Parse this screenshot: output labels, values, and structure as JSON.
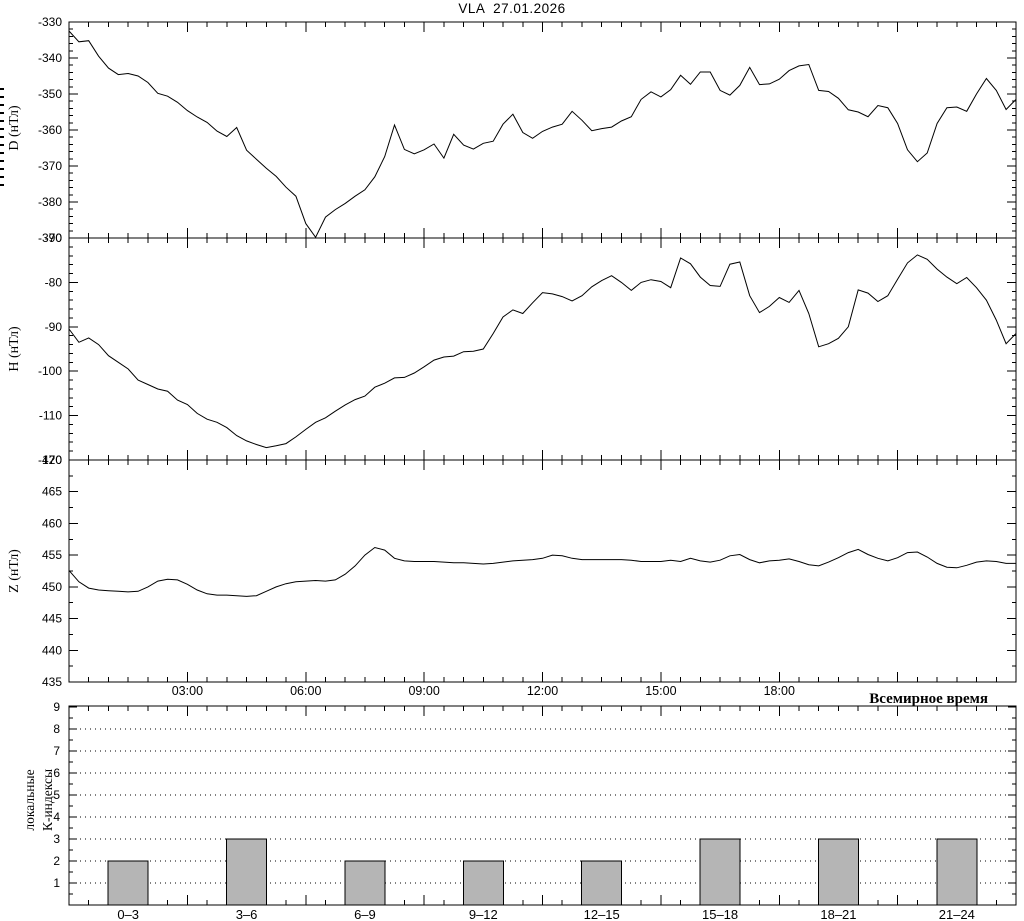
{
  "title": "VLA  27.01.2026",
  "colors": {
    "ink": "#000000",
    "background": "#ffffff",
    "bar_fill": "#b5b5b5"
  },
  "x_axis": {
    "range_hours": [
      0,
      24
    ],
    "minor_tick_step_hours": 0.5,
    "major_tick_step_hours": 3,
    "tick_hours": [
      3,
      6,
      9,
      12,
      15,
      18
    ],
    "tick_labels": [
      "03:00",
      "06:00",
      "09:00",
      "12:00",
      "15:00",
      "18:00"
    ],
    "note": "Всемирное время"
  },
  "chart_data": [
    {
      "type": "line",
      "name": "d",
      "ylabel": "D (нТл)",
      "ylim": [
        -390,
        -330
      ],
      "ytick_major_step": 10,
      "ytick_minor_step": 2,
      "x_start_hour": 0,
      "x_step_hour": 0.25,
      "values": [
        -332.5,
        -335.5,
        -335.2,
        -339.5,
        -342.8,
        -344.6,
        -344.3,
        -345.0,
        -346.8,
        -349.8,
        -350.6,
        -352.3,
        -354.6,
        -356.4,
        -357.9,
        -360.3,
        -361.8,
        -359.3,
        -365.6,
        -368.1,
        -370.6,
        -372.9,
        -375.9,
        -378.4,
        -386.0,
        -389.8,
        -384.2,
        -382.1,
        -380.4,
        -378.4,
        -376.6,
        -373.0,
        -367.4,
        -358.6,
        -365.4,
        -366.6,
        -365.5,
        -363.9,
        -367.8,
        -361.2,
        -364.2,
        -365.3,
        -363.7,
        -363.1,
        -358.4,
        -355.6,
        -360.7,
        -362.3,
        -360.4,
        -359.2,
        -358.4,
        -354.8,
        -357.3,
        -360.2,
        -359.6,
        -359.2,
        -357.5,
        -356.3,
        -351.5,
        -349.4,
        -350.8,
        -348.8,
        -344.8,
        -347.3,
        -343.9,
        -343.9,
        -349.0,
        -350.3,
        -347.6,
        -342.6,
        -347.4,
        -347.2,
        -345.9,
        -343.5,
        -342.2,
        -341.8,
        -349.0,
        -349.3,
        -351.2,
        -354.4,
        -355.0,
        -356.3,
        -353.2,
        -353.8,
        -358.2,
        -365.5,
        -368.8,
        -366.4,
        -358.2,
        -353.8,
        -353.6,
        -354.8,
        -350.0,
        -345.7,
        -349.0,
        -354.3,
        -351.5
      ]
    },
    {
      "type": "line",
      "name": "h",
      "ylabel": "H (нТл)",
      "ylim": [
        -120,
        -70
      ],
      "ytick_major_step": 10,
      "ytick_minor_step": 2,
      "x_start_hour": 0,
      "x_step_hour": 0.25,
      "values": [
        -90.5,
        -93.5,
        -92.5,
        -94.0,
        -96.5,
        -98.0,
        -99.5,
        -102.0,
        -103.0,
        -104.0,
        -104.5,
        -106.5,
        -107.5,
        -109.5,
        -110.8,
        -111.5,
        -112.7,
        -114.5,
        -115.7,
        -116.5,
        -117.2,
        -116.8,
        -116.3,
        -114.8,
        -113.1,
        -111.5,
        -110.5,
        -109.0,
        -107.6,
        -106.4,
        -105.6,
        -103.6,
        -102.7,
        -101.5,
        -101.4,
        -100.4,
        -99.0,
        -97.5,
        -96.8,
        -96.6,
        -95.6,
        -95.5,
        -95.0,
        -91.5,
        -87.8,
        -86.2,
        -87.0,
        -84.6,
        -82.3,
        -82.6,
        -83.2,
        -84.2,
        -83.0,
        -81.0,
        -79.6,
        -78.5,
        -80.0,
        -81.8,
        -80.0,
        -79.4,
        -79.8,
        -81.2,
        -74.5,
        -75.8,
        -78.8,
        -80.7,
        -80.9,
        -75.9,
        -75.4,
        -83.0,
        -86.8,
        -85.4,
        -83.4,
        -84.5,
        -81.8,
        -87.0,
        -94.5,
        -93.8,
        -92.6,
        -90.0,
        -81.7,
        -82.4,
        -84.3,
        -83.0,
        -79.3,
        -75.6,
        -73.8,
        -74.8,
        -77.0,
        -78.8,
        -80.3,
        -78.9,
        -81.2,
        -84.0,
        -88.5,
        -93.8,
        -91.5
      ]
    },
    {
      "type": "line",
      "name": "z",
      "ylabel": "Z (нТл)",
      "ylim": [
        435,
        470
      ],
      "ytick_major_step": 5,
      "ytick_minor_step": 2.5,
      "x_start_hour": 0,
      "x_step_hour": 0.25,
      "values": [
        452.6,
        450.8,
        449.8,
        449.5,
        449.4,
        449.3,
        449.2,
        449.3,
        450.0,
        450.9,
        451.2,
        451.1,
        450.4,
        449.5,
        448.9,
        448.7,
        448.7,
        448.6,
        448.5,
        448.6,
        449.3,
        450.0,
        450.5,
        450.8,
        450.9,
        451.0,
        450.9,
        451.1,
        452.0,
        453.3,
        455.0,
        456.2,
        455.8,
        454.5,
        454.1,
        454.0,
        454.0,
        454.0,
        453.9,
        453.8,
        453.8,
        453.7,
        453.6,
        453.7,
        453.9,
        454.1,
        454.2,
        454.3,
        454.5,
        455.0,
        454.9,
        454.5,
        454.3,
        454.3,
        454.3,
        454.3,
        454.3,
        454.2,
        454.0,
        454.0,
        454.0,
        454.2,
        454.0,
        454.5,
        454.1,
        453.9,
        454.2,
        454.9,
        455.1,
        454.3,
        453.8,
        454.1,
        454.2,
        454.4,
        454.0,
        453.5,
        453.3,
        453.9,
        454.6,
        455.4,
        455.9,
        455.1,
        454.5,
        454.1,
        454.6,
        455.4,
        455.5,
        454.7,
        453.7,
        453.1,
        453.0,
        453.4,
        453.9,
        454.1,
        454.0,
        453.7,
        453.7
      ]
    },
    {
      "type": "bar",
      "name": "k-index",
      "ylabel_line1": "локальные",
      "ylabel_line2": "К-индексы",
      "ylim": [
        0,
        9
      ],
      "yticks": [
        1,
        2,
        3,
        4,
        5,
        6,
        7,
        8,
        9
      ],
      "grid_levels": [
        1,
        2,
        3,
        4,
        5,
        6,
        7,
        8
      ],
      "categories": [
        "0–3",
        "3–6",
        "6–9",
        "9–12",
        "12–15",
        "15–18",
        "18–21",
        "21–24"
      ],
      "values": [
        2,
        3,
        2,
        2,
        2,
        3,
        3,
        3
      ]
    }
  ]
}
